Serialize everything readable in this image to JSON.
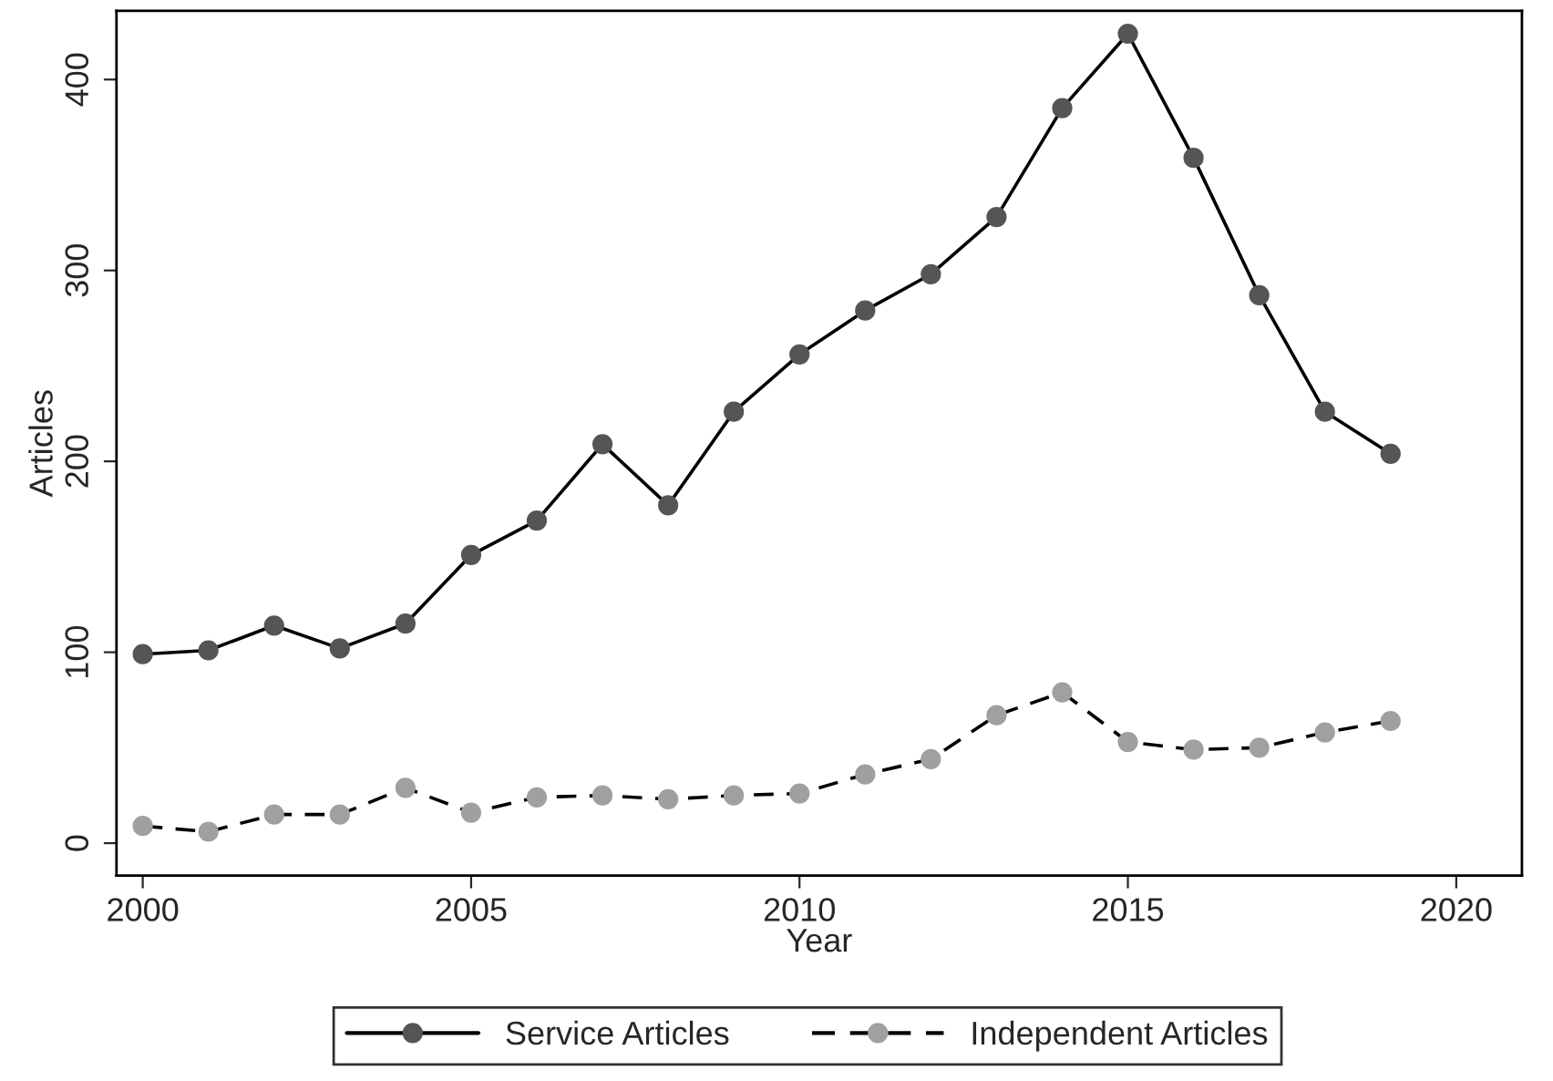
{
  "chart_data": {
    "type": "line",
    "xlabel": "Year",
    "ylabel": "Articles",
    "x": [
      2000,
      2001,
      2002,
      2003,
      2004,
      2005,
      2006,
      2007,
      2008,
      2009,
      2010,
      2011,
      2012,
      2013,
      2014,
      2015,
      2016,
      2017,
      2018,
      2019
    ],
    "series": [
      {
        "name": "Service Articles",
        "color": "#555555",
        "line_style": "solid",
        "values": [
          99,
          101,
          114,
          102,
          115,
          151,
          169,
          209,
          177,
          226,
          256,
          279,
          298,
          328,
          385,
          424,
          359,
          287,
          226,
          204
        ]
      },
      {
        "name": "Independent Articles",
        "color": "#a0a0a0",
        "line_style": "dashed",
        "values": [
          9,
          6,
          15,
          15,
          29,
          16,
          24,
          25,
          23,
          25,
          26,
          36,
          44,
          67,
          79,
          53,
          49,
          50,
          58,
          64
        ]
      }
    ],
    "xlim": [
      1999.6,
      2021
    ],
    "xticks": [
      2000,
      2005,
      2010,
      2015,
      2020
    ],
    "ylim": [
      -17,
      436
    ],
    "yticks": [
      0,
      100,
      200,
      300,
      400
    ],
    "marker": "circle",
    "grid": false,
    "legend": "bottom"
  }
}
